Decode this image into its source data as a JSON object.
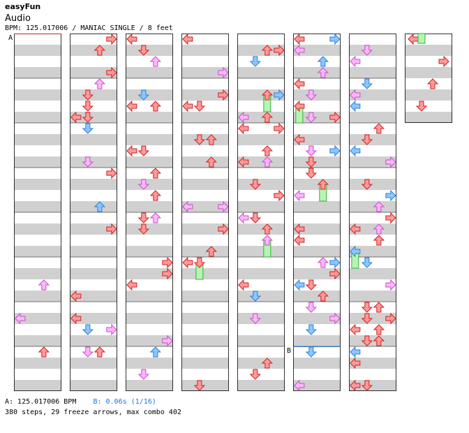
{
  "header": {
    "title": "easyFun",
    "subtitle": "Audio",
    "info": "BPM: 125.017006 / MANIAC SINGLE / 8 feet"
  },
  "markers": {
    "a": "A",
    "b": "B"
  },
  "footer": {
    "bpm_a": "A: 125.017006 BPM",
    "bpm_b": "B: 0.06s (1/16)",
    "summary": "380 steps, 29 freeze arrows, max combo 402"
  },
  "colors": {
    "red": "#ff9a9a",
    "red_stroke": "#d21e1e",
    "blue": "#8dc6ff",
    "blue_stroke": "#2b7fd8",
    "pink": "#ffb6ff",
    "pink_stroke": "#c64fc6",
    "freeze": "#b4f5b4",
    "freeze_stroke": "#3ca83c",
    "stripe": "#d0d0d0"
  }
}
